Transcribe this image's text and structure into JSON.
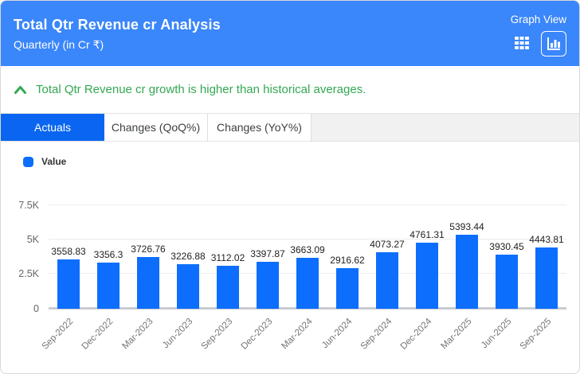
{
  "header": {
    "title": "Total Qtr Revenue cr Analysis",
    "subtitle": "Quarterly (in Cr ₹)",
    "view_label": "Graph View",
    "background_color": "#3a86fb",
    "icons": [
      {
        "name": "table-view-icon"
      },
      {
        "name": "graph-view-icon",
        "selected": true
      }
    ]
  },
  "insight": {
    "icon": "chevron-up-icon",
    "text": "Total Qtr Revenue cr growth is higher than historical averages.",
    "color": "#34a853"
  },
  "tabs": [
    {
      "label": "Actuals",
      "active": true
    },
    {
      "label": "Changes (QoQ%)",
      "active": false
    },
    {
      "label": "Changes (YoY%)",
      "active": false
    }
  ],
  "active_tab_color": "#0a66f0",
  "legend": {
    "label": "Value",
    "color": "#0d6efd"
  },
  "chart_data": {
    "type": "bar",
    "title": "Total Qtr Revenue cr Analysis",
    "subtitle": "Quarterly (in Cr ₹)",
    "series_name": "Value",
    "categories": [
      "Sep-2022",
      "Dec-2022",
      "Mar-2023",
      "Jun-2023",
      "Sep-2023",
      "Dec-2023",
      "Mar-2024",
      "Jun-2024",
      "Sep-2024",
      "Dec-2024",
      "Mar-2025",
      "Jun-2025",
      "Sep-2025"
    ],
    "values": [
      3558.83,
      3356.3,
      3726.76,
      3226.88,
      3112.02,
      3397.87,
      3663.09,
      2916.62,
      4073.27,
      4761.31,
      5393.44,
      3930.45,
      4443.81
    ],
    "xlabel": "",
    "ylabel": "",
    "yticks": [
      0,
      2500,
      5000,
      7500
    ],
    "ytick_labels": [
      "0",
      "2.5K",
      "5K",
      "7.5K"
    ],
    "ylim": [
      0,
      8300
    ],
    "grid": true,
    "bar_color": "#0d6efd",
    "legend_position": "top-left",
    "value_labels_shown": true,
    "xtick_rotation": 45
  }
}
